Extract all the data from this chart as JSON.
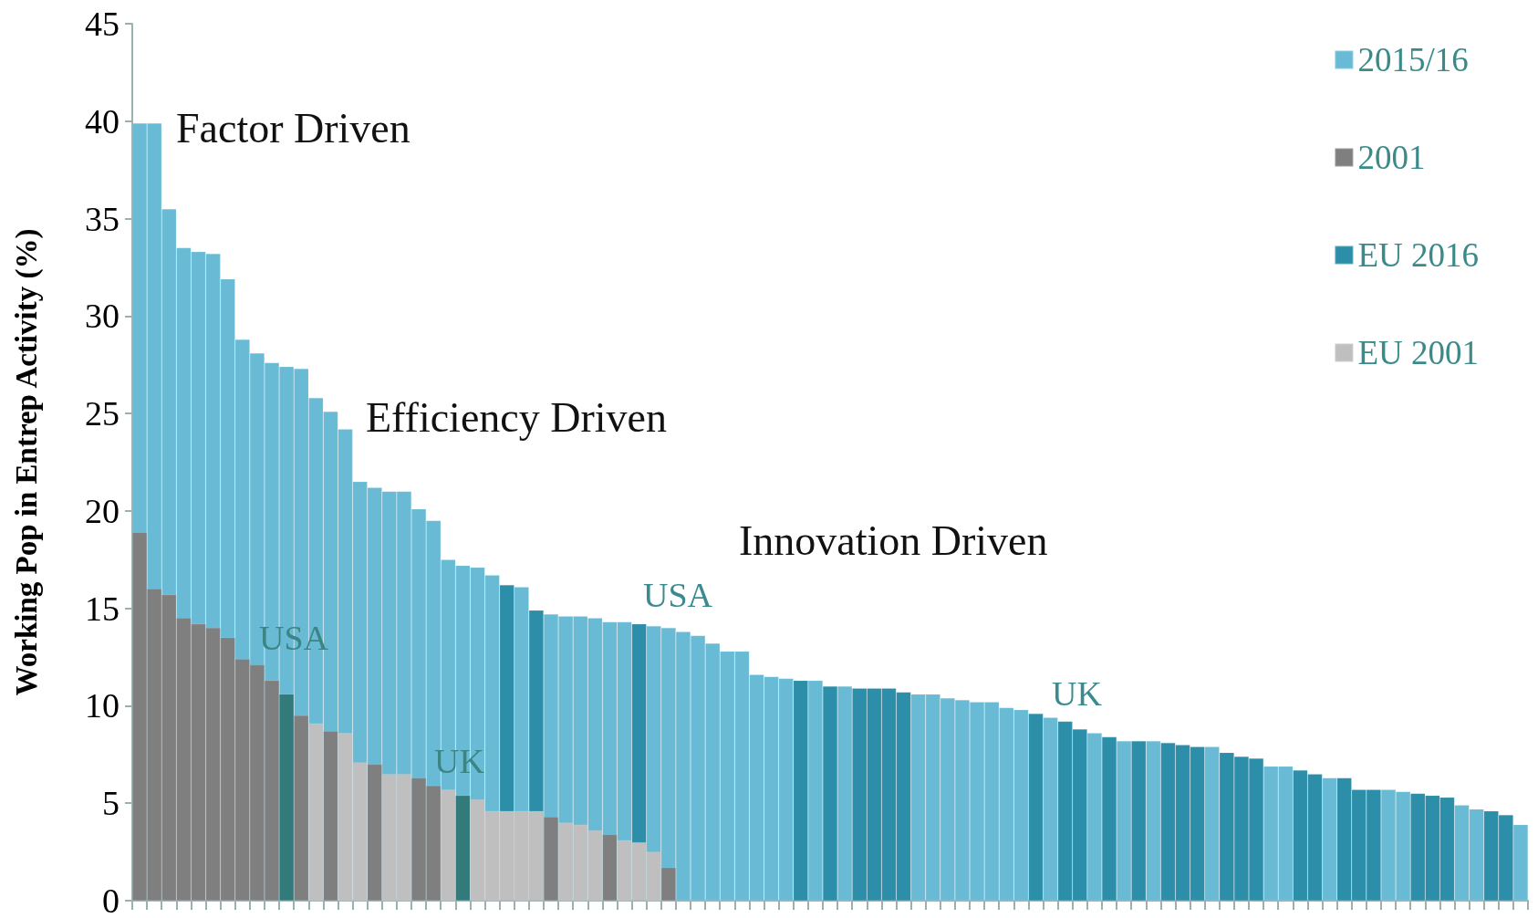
{
  "chart_data": {
    "type": "bar",
    "ylabel": "Working Pop in Entrep Activity (%)",
    "categories": [
      null,
      null,
      null,
      null,
      null,
      null,
      null,
      null,
      null,
      null,
      null,
      null,
      null,
      null,
      null,
      null,
      null,
      null,
      null,
      null,
      null,
      null,
      null,
      null,
      null,
      null,
      null,
      null,
      null,
      null,
      null,
      null,
      null,
      null,
      null,
      null,
      null,
      null,
      null,
      null,
      null,
      null,
      null,
      null,
      null,
      null,
      null,
      null,
      null,
      null,
      null,
      null,
      null,
      null,
      null,
      null,
      null,
      null,
      null,
      null,
      null,
      null,
      null,
      null,
      null,
      null,
      null,
      null,
      null,
      null,
      null,
      null,
      null,
      null,
      null,
      null,
      null,
      null,
      null,
      null,
      null,
      null,
      null,
      null,
      null,
      null,
      null,
      null,
      null,
      null,
      null,
      null,
      null,
      null,
      null
    ],
    "series": [
      {
        "name": "2015/16",
        "color": "#69bbd5",
        "values": [
          39.9,
          39.9,
          35.5,
          33.5,
          33.3,
          33.2,
          31.9,
          28.8,
          28.1,
          27.6,
          27.4,
          27.3,
          25.8,
          25.1,
          24.2,
          21.5,
          21.2,
          21.0,
          21.0,
          20.1,
          19.5,
          17.5,
          17.2,
          17.1,
          16.7,
          null,
          16.1,
          null,
          14.7,
          14.6,
          14.6,
          14.5,
          14.3,
          14.3,
          null,
          14.1,
          14.0,
          13.8,
          13.6,
          13.2,
          12.8,
          12.8,
          11.6,
          11.5,
          11.4,
          null,
          11.3,
          null,
          11.0,
          null,
          null,
          null,
          null,
          10.6,
          10.6,
          10.4,
          10.3,
          10.2,
          10.2,
          9.9,
          9.8,
          null,
          9.4,
          null,
          null,
          8.6,
          null,
          8.2,
          null,
          8.2,
          null,
          null,
          null,
          7.9,
          null,
          null,
          null,
          6.9,
          6.9,
          null,
          null,
          6.3,
          null,
          null,
          null,
          5.7,
          5.6,
          null,
          null,
          null,
          4.9,
          4.7,
          null,
          null,
          3.9
        ]
      },
      {
        "name": "2001",
        "color": "#7f7f7f",
        "values": [
          18.9,
          16.0,
          15.7,
          14.5,
          14.2,
          14.0,
          13.5,
          12.4,
          12.1,
          11.3,
          10.6,
          9.5,
          null,
          8.7,
          null,
          null,
          7.0,
          null,
          null,
          6.3,
          5.9,
          null,
          5.4,
          null,
          null,
          null,
          null,
          null,
          4.3,
          null,
          null,
          null,
          3.4,
          null,
          null,
          null,
          1.7,
          null,
          null,
          null,
          null,
          null,
          null,
          null,
          null,
          null,
          null,
          null,
          null,
          null,
          null,
          null,
          null,
          null,
          null,
          null,
          null,
          null,
          null,
          null,
          null,
          null,
          null,
          null,
          null,
          null,
          null,
          null,
          null,
          null,
          null,
          null,
          null,
          null,
          null,
          null,
          null,
          null,
          null,
          null,
          null,
          null,
          null,
          null,
          null,
          null,
          null,
          null,
          null,
          null,
          null,
          null,
          null,
          null,
          null
        ],
        "colors": [
          "#7f7f7f",
          "#7f7f7f",
          "#7f7f7f",
          "#7f7f7f",
          "#7f7f7f",
          "#7f7f7f",
          "#7f7f7f",
          "#7f7f7f",
          "#7f7f7f",
          "#7f7f7f",
          "#337b7a",
          "#7f7f7f",
          null,
          "#7f7f7f",
          null,
          null,
          "#7f7f7f",
          null,
          null,
          "#7f7f7f",
          "#7f7f7f",
          null,
          "#337b7a",
          null,
          null,
          null,
          null,
          null,
          "#7f7f7f",
          null,
          null,
          null,
          "#7f7f7f",
          null,
          null,
          null,
          "#7f7f7f",
          null,
          null,
          null,
          null,
          null,
          null,
          null,
          null,
          null,
          null,
          null,
          null,
          null,
          null,
          null,
          null,
          null,
          null,
          null,
          null,
          null,
          null,
          null,
          null,
          null,
          null,
          null,
          null,
          null,
          null,
          null,
          null,
          null,
          null,
          null,
          null,
          null,
          null,
          null,
          null,
          null,
          null,
          null,
          null,
          null,
          null,
          null,
          null,
          null,
          null,
          null,
          null,
          null,
          null,
          null,
          null,
          null,
          null
        ]
      },
      {
        "name": "EU 2016",
        "color": "#2c8ea8",
        "values": [
          null,
          null,
          null,
          null,
          null,
          null,
          null,
          null,
          null,
          null,
          null,
          null,
          null,
          null,
          null,
          null,
          null,
          null,
          null,
          null,
          null,
          null,
          null,
          null,
          null,
          16.2,
          null,
          14.9,
          null,
          null,
          null,
          null,
          null,
          null,
          14.2,
          null,
          null,
          null,
          null,
          null,
          null,
          null,
          null,
          null,
          null,
          11.3,
          null,
          11.0,
          null,
          10.9,
          10.9,
          10.9,
          10.7,
          null,
          null,
          null,
          null,
          null,
          null,
          null,
          null,
          9.6,
          null,
          9.2,
          8.8,
          null,
          8.4,
          null,
          8.2,
          null,
          8.1,
          8.0,
          7.9,
          null,
          7.6,
          7.4,
          7.3,
          null,
          null,
          6.7,
          6.5,
          null,
          6.3,
          5.7,
          5.7,
          null,
          null,
          5.5,
          5.4,
          5.3,
          null,
          null,
          4.6,
          4.4,
          null
        ]
      },
      {
        "name": "EU 2001",
        "color": "#bfbfbf",
        "values": [
          null,
          null,
          null,
          null,
          null,
          null,
          null,
          null,
          null,
          null,
          null,
          null,
          9.1,
          null,
          8.6,
          7.1,
          null,
          6.5,
          6.5,
          null,
          null,
          5.7,
          null,
          5.2,
          4.6,
          4.6,
          4.6,
          4.6,
          null,
          4.0,
          3.9,
          3.6,
          null,
          3.1,
          3.0,
          2.5,
          null,
          null,
          null,
          null,
          null,
          null,
          null,
          null,
          null,
          null,
          null,
          null,
          null,
          null,
          null,
          null,
          null,
          null,
          null,
          null,
          null,
          null,
          null,
          null,
          null,
          null,
          null,
          null,
          null,
          null,
          null,
          null,
          null,
          null,
          null,
          null,
          null,
          null,
          null,
          null,
          null,
          null,
          null,
          null,
          null,
          null,
          null,
          null,
          null,
          null,
          null,
          null,
          null,
          null,
          null,
          null,
          null,
          null,
          null
        ]
      }
    ],
    "ylim": [
      0,
      45
    ],
    "yticks": [
      0,
      5,
      10,
      15,
      20,
      25,
      30,
      35,
      40,
      45
    ],
    "legend": "top right",
    "annotations": [
      "Factor Driven",
      "Efficiency Driven",
      "Innovation Driven",
      "USA",
      "UK",
      "USA",
      "UK"
    ]
  }
}
